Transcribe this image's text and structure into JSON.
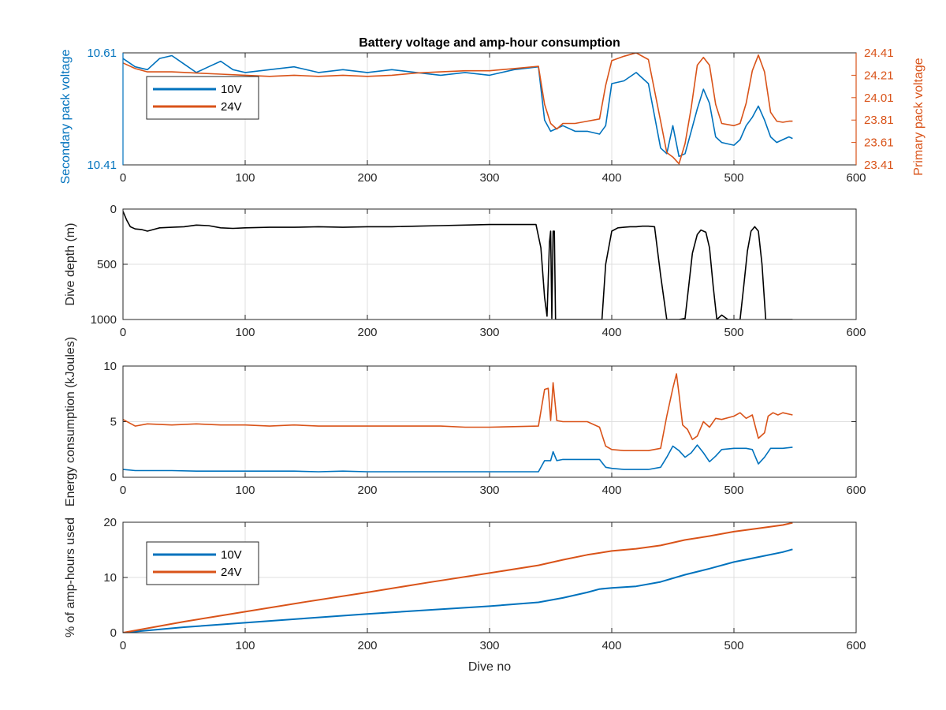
{
  "chart_data": [
    {
      "type": "line",
      "title": "Battery voltage and amp-hour consumption",
      "xlabel": "",
      "xlim": [
        0,
        600
      ],
      "xticks": [
        0,
        100,
        200,
        300,
        400,
        500,
        600
      ],
      "grid": true,
      "legend": {
        "placement": "top-left",
        "entries": [
          "10V",
          "24V"
        ]
      },
      "y_left": {
        "label": "Secondary pack voltage",
        "color": "#0072BD",
        "lim": [
          10.41,
          10.61
        ],
        "ticks": [
          10.41,
          10.61
        ]
      },
      "y_right": {
        "label": "Primary pack voltage",
        "color": "#D95319",
        "lim": [
          23.41,
          24.41
        ],
        "ticks": [
          23.41,
          23.61,
          23.81,
          24.01,
          24.21,
          24.41
        ]
      },
      "series": [
        {
          "name": "10V",
          "axis": "left",
          "color": "#0072BD",
          "x": [
            0,
            10,
            20,
            30,
            40,
            50,
            60,
            70,
            80,
            90,
            100,
            120,
            140,
            160,
            180,
            200,
            220,
            240,
            260,
            280,
            300,
            320,
            340,
            345,
            350,
            355,
            360,
            370,
            380,
            390,
            395,
            400,
            410,
            420,
            430,
            440,
            445,
            450,
            455,
            460,
            465,
            470,
            475,
            480,
            485,
            490,
            500,
            505,
            510,
            515,
            520,
            525,
            530,
            535,
            540,
            545,
            548
          ],
          "y": [
            10.6,
            10.585,
            10.58,
            10.6,
            10.605,
            10.59,
            10.575,
            10.585,
            10.595,
            10.58,
            10.575,
            10.58,
            10.585,
            10.575,
            10.58,
            10.575,
            10.58,
            10.575,
            10.57,
            10.575,
            10.57,
            10.58,
            10.585,
            10.49,
            10.47,
            10.475,
            10.48,
            10.47,
            10.47,
            10.465,
            10.48,
            10.555,
            10.56,
            10.575,
            10.555,
            10.44,
            10.43,
            10.48,
            10.425,
            10.43,
            10.47,
            10.51,
            10.545,
            10.52,
            10.46,
            10.45,
            10.445,
            10.455,
            10.48,
            10.495,
            10.515,
            10.49,
            10.46,
            10.45,
            10.455,
            10.46,
            10.457
          ]
        },
        {
          "name": "24V",
          "axis": "right",
          "color": "#D95319",
          "x": [
            0,
            10,
            20,
            40,
            60,
            80,
            100,
            120,
            140,
            160,
            180,
            200,
            220,
            240,
            260,
            280,
            300,
            320,
            340,
            345,
            350,
            355,
            360,
            370,
            380,
            390,
            395,
            400,
            410,
            420,
            430,
            440,
            445,
            450,
            455,
            460,
            465,
            470,
            475,
            480,
            485,
            490,
            500,
            505,
            510,
            515,
            520,
            525,
            530,
            535,
            540,
            545,
            548
          ],
          "y": [
            24.32,
            24.27,
            24.24,
            24.24,
            24.23,
            24.22,
            24.21,
            24.2,
            24.21,
            24.2,
            24.21,
            24.2,
            24.21,
            24.23,
            24.24,
            24.25,
            24.25,
            24.27,
            24.29,
            23.95,
            23.78,
            23.73,
            23.78,
            23.78,
            23.8,
            23.82,
            24.12,
            24.34,
            24.38,
            24.41,
            24.35,
            23.8,
            23.52,
            23.48,
            23.42,
            23.6,
            23.92,
            24.3,
            24.37,
            24.3,
            23.95,
            23.78,
            23.76,
            23.78,
            23.96,
            24.25,
            24.39,
            24.24,
            23.88,
            23.8,
            23.79,
            23.8,
            23.8
          ]
        }
      ]
    },
    {
      "type": "line",
      "title": "",
      "xlabel": "",
      "ylabel": "Dive depth (m)",
      "xlim": [
        0,
        600
      ],
      "ylim": [
        0,
        1000
      ],
      "y_reversed": true,
      "xticks": [
        0,
        100,
        200,
        300,
        400,
        500,
        600
      ],
      "yticks": [
        0,
        500,
        1000
      ],
      "grid": true,
      "series": [
        {
          "color": "#000000",
          "x": [
            0,
            3,
            6,
            10,
            15,
            20,
            25,
            30,
            40,
            50,
            60,
            70,
            80,
            90,
            100,
            120,
            140,
            160,
            180,
            200,
            220,
            240,
            260,
            280,
            300,
            320,
            338,
            342,
            345,
            347,
            349,
            350,
            351,
            352,
            353,
            354,
            355,
            360,
            370,
            380,
            390,
            392,
            395,
            400,
            405,
            410,
            415,
            420,
            425,
            430,
            435,
            440,
            445,
            450,
            455,
            460,
            463,
            466,
            470,
            473,
            477,
            480,
            483,
            486,
            490,
            495,
            500,
            505,
            508,
            511,
            514,
            517,
            520,
            523,
            526,
            530,
            540,
            548
          ],
          "y": [
            20,
            100,
            160,
            180,
            185,
            200,
            185,
            170,
            165,
            160,
            145,
            150,
            170,
            175,
            170,
            165,
            165,
            160,
            165,
            160,
            160,
            155,
            150,
            145,
            140,
            140,
            140,
            350,
            800,
            970,
            300,
            200,
            990,
            200,
            200,
            1000,
            1000,
            1000,
            1000,
            1000,
            1000,
            1000,
            500,
            200,
            170,
            165,
            160,
            160,
            155,
            155,
            160,
            600,
            1000,
            1000,
            1000,
            990,
            700,
            400,
            230,
            190,
            210,
            350,
            700,
            1000,
            960,
            1000,
            1000,
            1000,
            700,
            380,
            200,
            160,
            200,
            500,
            1000,
            1000,
            1000,
            1000
          ]
        }
      ]
    },
    {
      "type": "line",
      "title": "",
      "xlabel": "",
      "ylabel": "Energy consumption (kJoules)",
      "xlim": [
        0,
        600
      ],
      "ylim": [
        0,
        10
      ],
      "xticks": [
        0,
        100,
        200,
        300,
        400,
        500,
        600
      ],
      "yticks": [
        0,
        5,
        10
      ],
      "grid": true,
      "series": [
        {
          "color": "#D95319",
          "x": [
            0,
            10,
            20,
            40,
            60,
            80,
            100,
            120,
            140,
            160,
            180,
            200,
            220,
            240,
            260,
            280,
            295,
            300,
            340,
            345,
            348,
            350,
            352,
            355,
            360,
            370,
            380,
            390,
            395,
            400,
            410,
            420,
            430,
            440,
            445,
            450,
            453,
            455,
            458,
            462,
            466,
            470,
            475,
            480,
            485,
            490,
            500,
            505,
            510,
            515,
            520,
            525,
            528,
            532,
            536,
            540,
            548
          ],
          "y": [
            5.2,
            4.6,
            4.8,
            4.7,
            4.8,
            4.7,
            4.7,
            4.6,
            4.7,
            4.6,
            4.6,
            4.6,
            4.6,
            4.6,
            4.6,
            4.5,
            4.5,
            4.5,
            4.6,
            7.9,
            8.0,
            5.1,
            8.5,
            5.1,
            5.0,
            5.0,
            5.0,
            4.5,
            2.8,
            2.5,
            2.4,
            2.4,
            2.4,
            2.6,
            5.5,
            8.0,
            9.3,
            7.5,
            4.7,
            4.3,
            3.4,
            3.7,
            5.0,
            4.5,
            5.3,
            5.2,
            5.5,
            5.8,
            5.3,
            5.6,
            3.5,
            4.0,
            5.5,
            5.8,
            5.6,
            5.8,
            5.6
          ]
        },
        {
          "color": "#0072BD",
          "x": [
            0,
            10,
            20,
            40,
            60,
            80,
            100,
            120,
            140,
            160,
            180,
            200,
            220,
            240,
            260,
            280,
            295,
            300,
            340,
            345,
            350,
            352,
            355,
            360,
            370,
            380,
            390,
            395,
            400,
            410,
            420,
            430,
            440,
            445,
            450,
            455,
            460,
            465,
            470,
            475,
            480,
            485,
            490,
            500,
            505,
            510,
            515,
            520,
            525,
            530,
            540,
            548
          ],
          "y": [
            0.7,
            0.6,
            0.6,
            0.6,
            0.55,
            0.55,
            0.55,
            0.55,
            0.55,
            0.5,
            0.55,
            0.5,
            0.5,
            0.5,
            0.5,
            0.5,
            0.5,
            0.5,
            0.5,
            1.5,
            1.5,
            2.3,
            1.5,
            1.6,
            1.6,
            1.6,
            1.6,
            0.9,
            0.8,
            0.7,
            0.7,
            0.7,
            0.9,
            1.8,
            2.8,
            2.4,
            1.8,
            2.2,
            2.9,
            2.2,
            1.4,
            1.9,
            2.5,
            2.6,
            2.6,
            2.6,
            2.5,
            1.2,
            1.8,
            2.6,
            2.6,
            2.7
          ]
        }
      ]
    },
    {
      "type": "line",
      "title": "",
      "xlabel": "Dive no",
      "ylabel": "% of amp-hours used",
      "xlim": [
        0,
        600
      ],
      "ylim": [
        0,
        20
      ],
      "xticks": [
        0,
        100,
        200,
        300,
        400,
        500,
        600
      ],
      "yticks": [
        0,
        10,
        20
      ],
      "grid": true,
      "legend": {
        "placement": "top-left",
        "entries": [
          "10V",
          "24V"
        ]
      },
      "series": [
        {
          "name": "10V",
          "color": "#0072BD",
          "x": [
            0,
            50,
            100,
            150,
            200,
            250,
            300,
            340,
            360,
            380,
            390,
            400,
            420,
            440,
            460,
            480,
            500,
            520,
            540,
            548
          ],
          "y": [
            0,
            1.0,
            1.8,
            2.6,
            3.4,
            4.1,
            4.8,
            5.5,
            6.3,
            7.3,
            7.9,
            8.1,
            8.4,
            9.2,
            10.5,
            11.6,
            12.8,
            13.7,
            14.6,
            15.1
          ]
        },
        {
          "name": "24V",
          "color": "#D95319",
          "x": [
            0,
            50,
            100,
            150,
            200,
            250,
            300,
            340,
            360,
            380,
            400,
            420,
            440,
            460,
            480,
            500,
            520,
            540,
            548
          ],
          "y": [
            0,
            2.0,
            3.8,
            5.6,
            7.3,
            9.1,
            10.8,
            12.2,
            13.2,
            14.1,
            14.8,
            15.2,
            15.8,
            16.8,
            17.5,
            18.3,
            18.9,
            19.5,
            19.9
          ]
        }
      ]
    }
  ]
}
